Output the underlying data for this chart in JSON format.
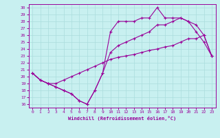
{
  "xlabel": "Windchill (Refroidissement éolien,°C)",
  "bg_color": "#c8f0f0",
  "line_color": "#990099",
  "grid_color": "#aadddd",
  "xlim": [
    -0.5,
    23.5
  ],
  "ylim": [
    15.5,
    30.5
  ],
  "xticks": [
    0,
    1,
    2,
    3,
    4,
    5,
    6,
    7,
    8,
    9,
    10,
    11,
    12,
    13,
    14,
    15,
    16,
    17,
    18,
    19,
    20,
    21,
    22,
    23
  ],
  "yticks": [
    16,
    17,
    18,
    19,
    20,
    21,
    22,
    23,
    24,
    25,
    26,
    27,
    28,
    29,
    30
  ],
  "line1_x": [
    0,
    1,
    2,
    3,
    4,
    5,
    6,
    7,
    8,
    9,
    10,
    11,
    12,
    13,
    14,
    15,
    16,
    17,
    18,
    19,
    20,
    21,
    22,
    23
  ],
  "line1_y": [
    20.5,
    19.5,
    19.0,
    18.5,
    18.0,
    17.5,
    16.5,
    16.0,
    18.0,
    20.5,
    26.5,
    28.0,
    28.0,
    28.0,
    28.5,
    28.5,
    30.0,
    28.5,
    28.5,
    28.5,
    28.0,
    26.5,
    25.0,
    23.0
  ],
  "line2_x": [
    0,
    1,
    2,
    3,
    4,
    5,
    6,
    7,
    8,
    9,
    10,
    11,
    12,
    13,
    14,
    15,
    16,
    17,
    18,
    19,
    20,
    21,
    22,
    23
  ],
  "line2_y": [
    20.5,
    19.5,
    19.0,
    18.5,
    18.0,
    17.5,
    16.5,
    16.0,
    18.0,
    20.5,
    23.5,
    24.5,
    25.0,
    25.5,
    26.0,
    26.5,
    27.5,
    27.5,
    28.0,
    28.5,
    28.0,
    27.5,
    26.0,
    23.0
  ],
  "line3_x": [
    0,
    1,
    2,
    3,
    4,
    5,
    6,
    7,
    8,
    9,
    10,
    11,
    12,
    13,
    14,
    15,
    16,
    17,
    18,
    19,
    20,
    21,
    22,
    23
  ],
  "line3_y": [
    20.5,
    19.5,
    19.0,
    19.0,
    19.5,
    20.0,
    20.5,
    21.0,
    21.5,
    22.0,
    22.5,
    22.8,
    23.0,
    23.2,
    23.5,
    23.8,
    24.0,
    24.3,
    24.5,
    25.0,
    25.5,
    25.5,
    26.0,
    23.0
  ],
  "tick_fontsize": 4.5,
  "xlabel_fontsize": 5.0,
  "linewidth": 0.8,
  "markersize": 3.0
}
